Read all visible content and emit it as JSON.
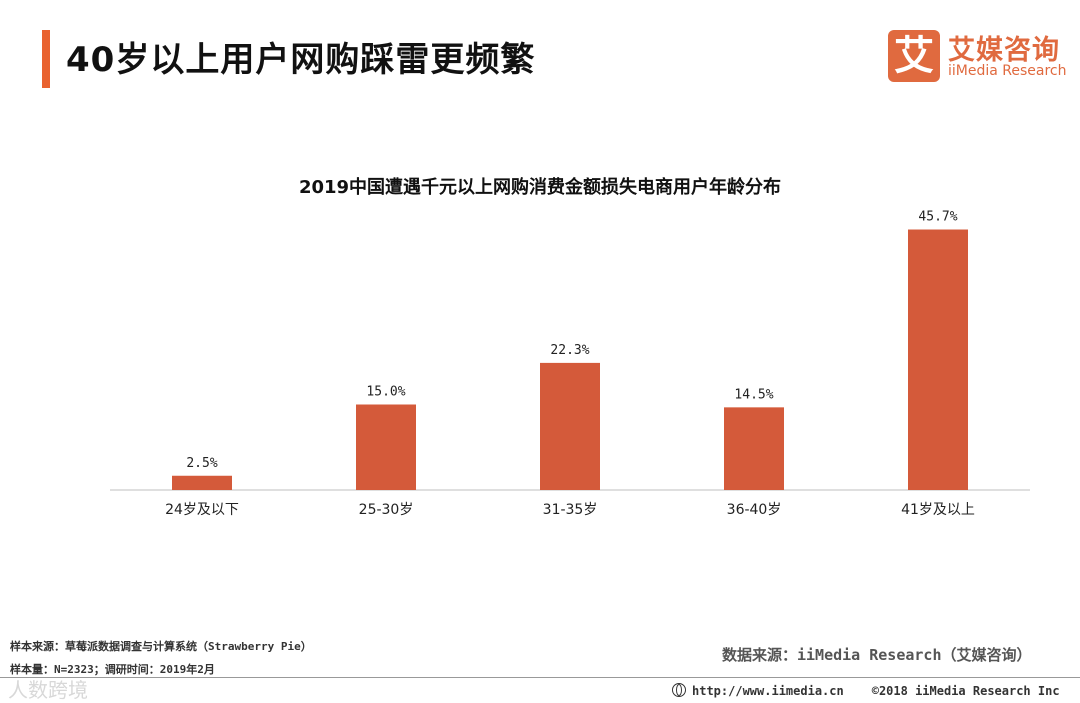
{
  "header": {
    "title": "40岁以上用户网购踩雷更频繁",
    "logo_cn": "艾媒咨询",
    "logo_en": "iiMedia Research",
    "logo_mark": "艾"
  },
  "colors": {
    "accent": "#e9622f",
    "bar": "#d45a3a",
    "logo": "#e06a3f"
  },
  "chart_data": {
    "type": "bar",
    "title": "2019中国遭遇千元以上网购消费金额损失电商用户年龄分布",
    "categories": [
      "24岁及以下",
      "25-30岁",
      "31-35岁",
      "36-40岁",
      "41岁及以上"
    ],
    "values": [
      2.5,
      15.0,
      22.3,
      14.5,
      45.7
    ],
    "value_labels": [
      "2.5%",
      "15.0%",
      "22.3%",
      "14.5%",
      "45.7%"
    ],
    "unit": "%",
    "ylim": [
      0,
      50
    ],
    "grid": false,
    "legend": "none"
  },
  "footer": {
    "sample_source": "样本来源：草莓派数据调查与计算系统（Strawberry  Pie）",
    "sample_size": "样本量：N=2323；调研时间：2019年2月",
    "data_source": "数据来源：iiMedia Research（艾媒咨询）",
    "url": "http://www.iimedia.cn",
    "copyright": "©2018  iiMedia Research  Inc",
    "watermark": "人数跨境"
  }
}
